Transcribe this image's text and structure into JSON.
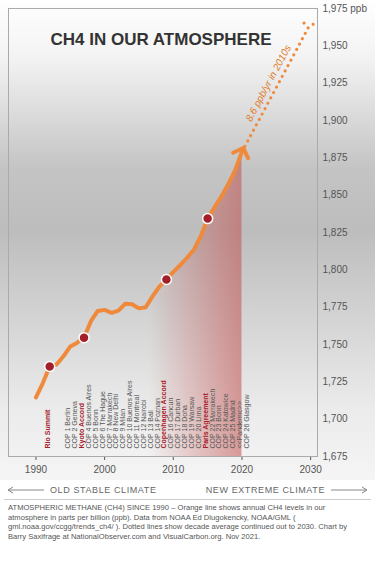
{
  "chart_data": {
    "type": "line",
    "title": "CH4 IN OUR ATMOSPHERE",
    "x": [
      1990,
      1991,
      1992,
      1993,
      1994,
      1995,
      1996,
      1997,
      1998,
      1999,
      2000,
      2001,
      2002,
      2003,
      2004,
      2005,
      2006,
      2007,
      2008,
      2009,
      2010,
      2011,
      2012,
      2013,
      2014,
      2015,
      2016,
      2017,
      2018,
      2019,
      2020
    ],
    "values": [
      1714.6,
      1724.2,
      1735.3,
      1736.6,
      1742.1,
      1748.7,
      1751.2,
      1754.6,
      1765.6,
      1772.5,
      1773.2,
      1771.2,
      1772.7,
      1777.3,
      1777.0,
      1774.2,
      1775.0,
      1782.4,
      1788.9,
      1793.5,
      1798.6,
      1803.1,
      1808.1,
      1813.5,
      1822.5,
      1834.3,
      1841.9,
      1849.1,
      1857.3,
      1866.6,
      1879.1
    ],
    "color": "#ef8a3c",
    "marker": "arrow",
    "line_style": "solid",
    "projection": {
      "x": [
        2020,
        2030
      ],
      "values": [
        1879.1,
        1965.1
      ],
      "color": "#ef8a3c",
      "marker": "arrow",
      "line_style": "dotted",
      "label": "8.6 ppb/yr in 2010s"
    },
    "events": {
      "x": [
        1992,
        1997,
        2009,
        2015
      ],
      "values": [
        1735.3,
        1754.6,
        1793.5,
        1834.3
      ],
      "labels": [
        "Rio Summit",
        "Kyoto Accord",
        "Copenhagen Accord",
        "Paris Agreement"
      ],
      "color": "#a3202a"
    },
    "annotations": {
      "x": [
        1995,
        1996,
        1998,
        1999,
        2000,
        2001,
        2002,
        2003,
        2004,
        2005,
        2006,
        2007,
        2008,
        2010,
        2011,
        2012,
        2013,
        2014,
        2016,
        2017,
        2018,
        2019,
        2020,
        2021
      ],
      "labels": [
        "COP 1 Berlin",
        "COP 2 Geneva",
        "COP 4 Buenos Aires",
        "COP 5 Bonn",
        "COP 6 The Hague",
        "COP 7 Marrakech",
        "COP 8 New Delhi",
        "COP 9 Milan",
        "COP 10 Buenos Aires",
        "COP 11 Montreal",
        "COP 12 Nairobi",
        "COP 13 Bali",
        "COP 14 Poznan",
        "COP 16 Cancun",
        "COP 17 Durban",
        "COP 18 Doha",
        "COP 19 Warsaw",
        "COP 20 Lima",
        "COP 22 Marrakech",
        "COP 23 Bonn",
        "COP 24 Katowice",
        "COP 25 Madrid",
        "<<Pandemic>>",
        "COP 26 Glasgow"
      ]
    },
    "xlim": [
      1986,
      2031
    ],
    "xticks": [
      1990,
      2000,
      2010,
      2020,
      2030
    ],
    "ylim": [
      1675,
      1975
    ],
    "yticks": [
      {
        "value": 1675,
        "label": "1,675"
      },
      {
        "value": 1700,
        "label": "1,700"
      },
      {
        "value": 1725,
        "label": "1,725"
      },
      {
        "value": 1750,
        "label": "1,750"
      },
      {
        "value": 1775,
        "label": "1,775"
      },
      {
        "value": 1800,
        "label": "1,800"
      },
      {
        "value": 1825,
        "label": "1,825"
      },
      {
        "value": 1850,
        "label": "1,850"
      },
      {
        "value": 1875,
        "label": "1,875"
      },
      {
        "value": 1900,
        "label": "1,900"
      },
      {
        "value": 1925,
        "label": "1,925"
      },
      {
        "value": 1950,
        "label": "1,950"
      },
      {
        "value": 1975,
        "label": "1,975 ppb"
      }
    ],
    "grid": false,
    "footer": [
      "OLD STABLE CLIMATE",
      "NEW EXTREME CLIMATE"
    ],
    "caption": "ATMOSPHERIC METHANE (CH4) SINCE 1990 – Orange line shows annual CH4 levels in our atmosphere in parts per billion (ppb). Data from NOAA Ed Dlugokencky, NOAA/GML ( gml.noaa.gov/ccgg/trends_ch4/ ). Dotted lines show decade average continued out to 2030. Chart by Barry Saxifrage at NationalObserver.com and VisualCarbon.org. Nov 2021."
  }
}
